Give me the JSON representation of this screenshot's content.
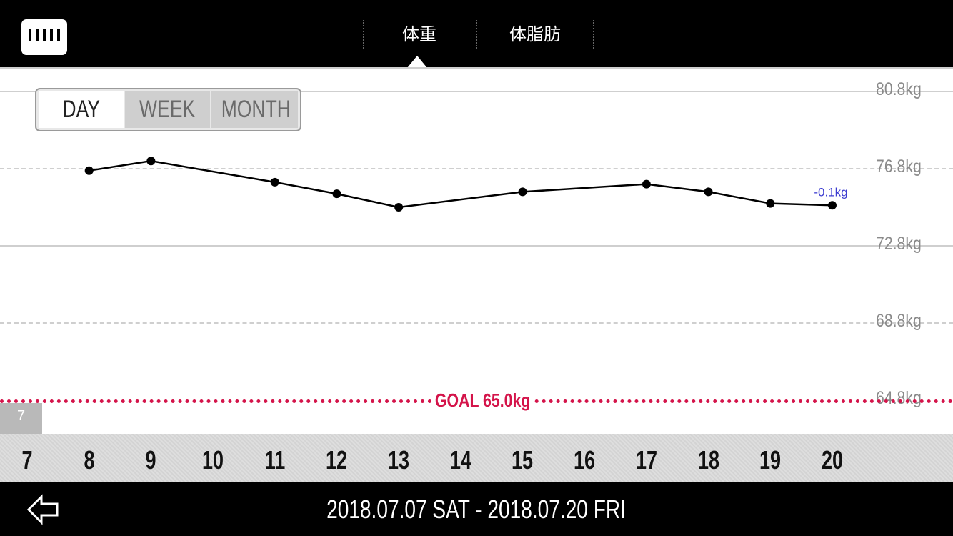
{
  "header": {
    "tabs": [
      {
        "label": "体重",
        "active": true
      },
      {
        "label": "体脂肪",
        "active": false
      }
    ]
  },
  "period_selector": {
    "options": [
      "DAY",
      "WEEK",
      "MONTH"
    ],
    "selected": "DAY"
  },
  "week_badge": "7",
  "goal": {
    "label": "GOAL 65.0kg",
    "value": 65.0,
    "color": "#d4144a"
  },
  "footer": {
    "date_range": "2018.07.07 SAT - 2018.07.20 FRI"
  },
  "chart_data": {
    "type": "line",
    "x": [
      8,
      9,
      11,
      12,
      13,
      15,
      17,
      18,
      19,
      20
    ],
    "y": [
      76.7,
      77.2,
      76.1,
      75.5,
      74.8,
      75.6,
      76.0,
      75.6,
      75.0,
      74.9
    ],
    "x_ticks": [
      "7",
      "8",
      "9",
      "10",
      "11",
      "12",
      "13",
      "14",
      "15",
      "16",
      "17",
      "18",
      "19",
      "20"
    ],
    "y_ticks": [
      "80.8kg",
      "76.8kg",
      "72.8kg",
      "68.8kg",
      "64.8kg"
    ],
    "y_tick_values": [
      80.8,
      76.8,
      72.8,
      68.8,
      64.8
    ],
    "ylim": [
      63.0,
      81.8
    ],
    "last_change_label": "-0.1kg",
    "line_color": "#000000",
    "annotation_color": "#3b3bd0"
  }
}
